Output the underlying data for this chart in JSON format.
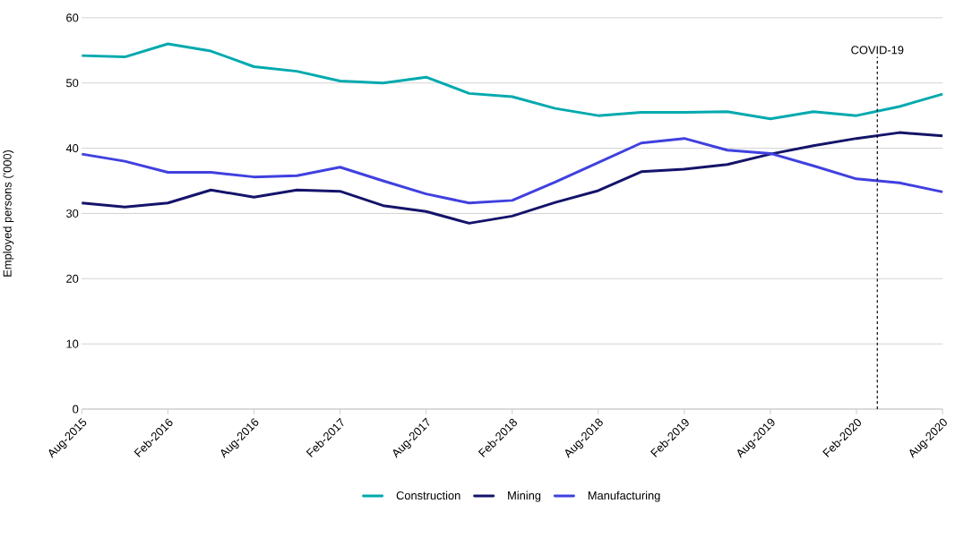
{
  "chart_data": {
    "type": "line",
    "ylabel": "Employed persons ('000)",
    "x": [
      "2015-08",
      "2015-11",
      "2016-02",
      "2016-05",
      "2016-08",
      "2016-11",
      "2017-02",
      "2017-05",
      "2017-08",
      "2017-11",
      "2018-02",
      "2018-05",
      "2018-08",
      "2018-11",
      "2019-02",
      "2019-05",
      "2019-08",
      "2019-11",
      "2020-02",
      "2020-05",
      "2020-08"
    ],
    "series": [
      {
        "name": "Construction",
        "color": "#00a9ae",
        "values": [
          54.2,
          54.0,
          56.0,
          54.9,
          52.5,
          51.8,
          50.3,
          50.0,
          50.9,
          48.4,
          47.9,
          46.1,
          45.0,
          45.5,
          45.5,
          45.6,
          44.5,
          45.6,
          45.0,
          46.4,
          48.3
        ]
      },
      {
        "name": "Mining",
        "color": "#14146a",
        "values": [
          31.6,
          31.0,
          31.6,
          33.6,
          32.5,
          33.6,
          33.4,
          31.2,
          30.3,
          28.5,
          29.6,
          31.7,
          33.5,
          36.4,
          36.8,
          37.5,
          39.1,
          40.4,
          41.5,
          42.4,
          41.9
        ]
      },
      {
        "name": "Manufacturing",
        "color": "#4040e0",
        "values": [
          39.1,
          38.0,
          36.3,
          36.3,
          35.6,
          35.8,
          37.1,
          35.0,
          33.0,
          31.6,
          32.0,
          34.8,
          37.8,
          40.8,
          41.5,
          39.7,
          39.2,
          37.3,
          35.3,
          34.7,
          33.3
        ]
      }
    ],
    "xlim": [
      "2015-08",
      "2020-08"
    ],
    "xticks": [
      {
        "value": "2015-08",
        "label": "Aug-2015"
      },
      {
        "value": "2016-02",
        "label": "Feb-2016"
      },
      {
        "value": "2016-08",
        "label": "Aug-2016"
      },
      {
        "value": "2017-02",
        "label": "Feb-2017"
      },
      {
        "value": "2017-08",
        "label": "Aug-2017"
      },
      {
        "value": "2018-02",
        "label": "Feb-2018"
      },
      {
        "value": "2018-08",
        "label": "Aug-2018"
      },
      {
        "value": "2019-02",
        "label": "Feb-2019"
      },
      {
        "value": "2019-08",
        "label": "Aug-2019"
      },
      {
        "value": "2020-02",
        "label": "Feb-2020"
      },
      {
        "value": "2020-08",
        "label": "Aug-2020"
      }
    ],
    "ylim": [
      0,
      60
    ],
    "yticks": [
      0,
      10,
      20,
      30,
      40,
      50,
      60
    ],
    "ref_lines": [
      {
        "axis": "x",
        "value": "2020-03-15",
        "label": "COVID-19",
        "color": "#000000",
        "line_style": "dashed"
      }
    ],
    "grid": "y",
    "legend": "bottom",
    "marker": "none",
    "line_style": "solid"
  }
}
